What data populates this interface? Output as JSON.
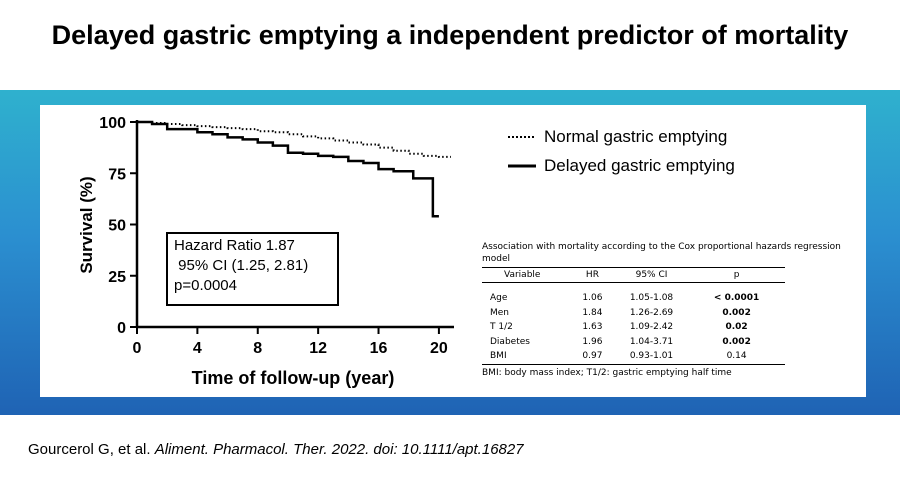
{
  "slide": {
    "title": "Delayed gastric emptying a independent predictor of mortality",
    "citation_authors": "Gourcerol G, et al. ",
    "citation_journal": "Aliment. Pharmacol. Ther. 2022. doi: 10.1111/apt.16827",
    "colors": {
      "band_top": "#2fb1ce",
      "band_bottom": "#1f63b4",
      "panel": "#ffffff"
    }
  },
  "hazard_box": {
    "line1": "Hazard Ratio 1.87",
    "line2": " 95% CI (1.25, 2.81)",
    "line3": "p=0.0004"
  },
  "chart_data": {
    "type": "line",
    "xlabel": "Time of follow-up (year)",
    "ylabel": "Survival (%)",
    "xlim": [
      0,
      21
    ],
    "ylim": [
      0,
      100
    ],
    "xticks": [
      0,
      4,
      8,
      12,
      16,
      20
    ],
    "yticks": [
      0,
      25,
      50,
      75,
      100
    ],
    "grid": false,
    "legend_position": "top-right",
    "series": [
      {
        "name": "Normal gastric emptying",
        "style": "dotted",
        "color": "#000000",
        "points": [
          [
            0,
            100
          ],
          [
            1,
            99.5
          ],
          [
            2,
            99
          ],
          [
            3,
            98.5
          ],
          [
            4,
            98
          ],
          [
            5,
            97.5
          ],
          [
            6,
            97
          ],
          [
            7,
            96.5
          ],
          [
            8,
            95.5
          ],
          [
            9,
            95
          ],
          [
            10,
            94
          ],
          [
            11,
            93
          ],
          [
            12,
            92
          ],
          [
            13,
            91
          ],
          [
            14,
            90
          ],
          [
            15,
            89
          ],
          [
            16,
            87.5
          ],
          [
            17,
            86
          ],
          [
            18,
            84.5
          ],
          [
            19,
            83.5
          ],
          [
            20,
            83
          ],
          [
            20.8,
            83
          ]
        ]
      },
      {
        "name": "Delayed gastric emptying",
        "style": "solid",
        "color": "#000000",
        "points": [
          [
            0,
            100
          ],
          [
            1,
            99
          ],
          [
            2,
            96.5
          ],
          [
            3,
            96.5
          ],
          [
            4,
            95
          ],
          [
            5,
            94
          ],
          [
            6,
            92.5
          ],
          [
            7,
            91.5
          ],
          [
            8,
            90
          ],
          [
            9,
            88.5
          ],
          [
            10,
            85
          ],
          [
            11,
            84.5
          ],
          [
            12,
            83.5
          ],
          [
            13,
            83
          ],
          [
            14,
            81
          ],
          [
            15,
            80
          ],
          [
            16,
            77
          ],
          [
            17,
            76
          ],
          [
            18,
            76
          ],
          [
            18.3,
            72.5
          ],
          [
            19,
            72.5
          ],
          [
            19.6,
            72.5
          ],
          [
            19.6,
            54
          ],
          [
            20,
            54
          ]
        ]
      }
    ]
  },
  "table": {
    "caption": "Association with mortality according to the Cox proportional hazards regression model",
    "columns": [
      "Variable",
      "HR",
      "95% CI",
      "p"
    ],
    "rows": [
      {
        "variable": "Age",
        "hr": "1.06",
        "ci": "1.05-1.08",
        "p": "< 0.0001",
        "p_bold": true
      },
      {
        "variable": "Men",
        "hr": "1.84",
        "ci": "1.26-2.69",
        "p": "0.002",
        "p_bold": true
      },
      {
        "variable": "T 1/2",
        "hr": "1.63",
        "ci": "1.09-2.42",
        "p": "0.02",
        "p_bold": true
      },
      {
        "variable": "Diabetes",
        "hr": "1.96",
        "ci": "1.04-3.71",
        "p": "0.002",
        "p_bold": true
      },
      {
        "variable": "BMI",
        "hr": "0.97",
        "ci": "0.93-1.01",
        "p": "0.14",
        "p_bold": false
      }
    ],
    "footnote": "BMI: body mass index; T1/2: gastric emptying half time"
  }
}
